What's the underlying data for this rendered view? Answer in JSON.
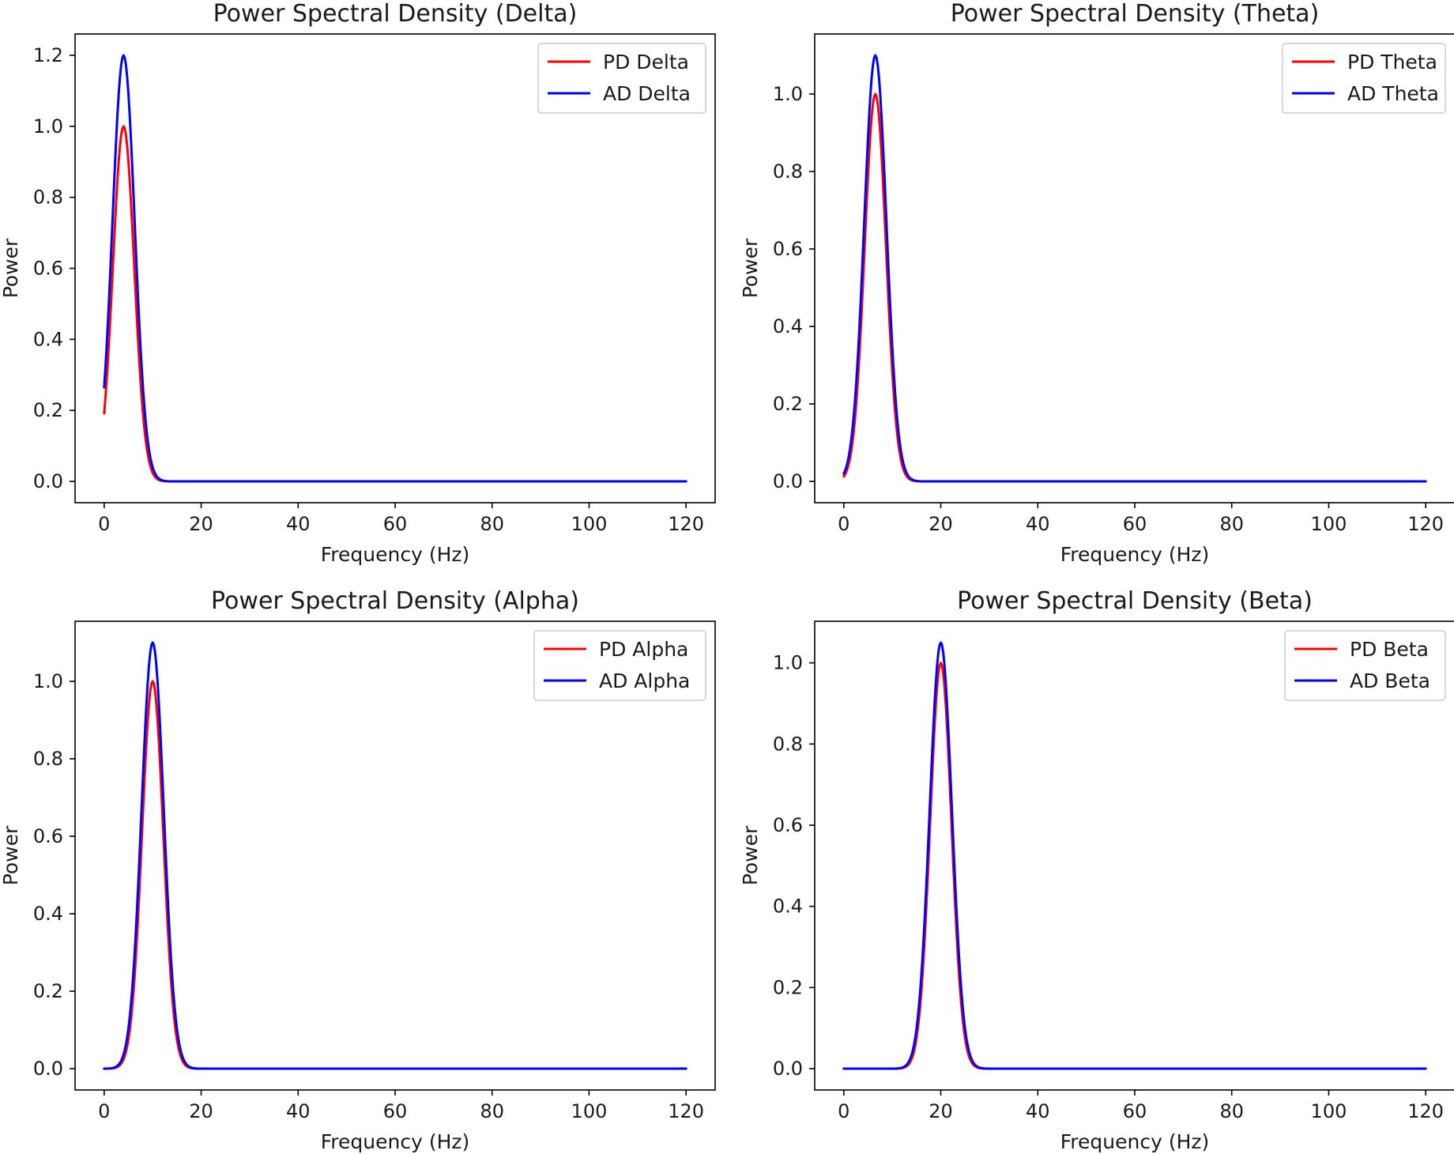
{
  "colors": {
    "PD": "#ff0000",
    "AD": "#0000ff"
  },
  "chart_data": [
    {
      "type": "line",
      "title": "Power Spectral Density (Delta)",
      "xlabel": "Frequency (Hz)",
      "ylabel": "Power",
      "xlim": [
        -6,
        126
      ],
      "ylim": [
        -0.06,
        1.26
      ],
      "xticks": [
        0,
        20,
        40,
        60,
        80,
        100,
        120
      ],
      "yticks": [
        0.0,
        0.2,
        0.4,
        0.6,
        0.8,
        1.0,
        1.2
      ],
      "ytick_labels": [
        "0.0",
        "0.2",
        "0.4",
        "0.6",
        "0.8",
        "1.0",
        "1.2"
      ],
      "legend": "top-right",
      "series": [
        {
          "name": "PD Delta",
          "color": "#ff0000",
          "peak_freq": 4,
          "peak_power": 1.0,
          "width_hz": 2.2,
          "x": [
            0,
            120
          ]
        },
        {
          "name": "AD Delta",
          "color": "#0000ff",
          "peak_freq": 4,
          "peak_power": 1.2,
          "width_hz": 2.3,
          "x": [
            0,
            120
          ]
        }
      ]
    },
    {
      "type": "line",
      "title": "Power Spectral Density (Theta)",
      "xlabel": "Frequency (Hz)",
      "ylabel": "Power",
      "xlim": [
        -6,
        126
      ],
      "ylim": [
        -0.055,
        1.155
      ],
      "xticks": [
        0,
        20,
        40,
        60,
        80,
        100,
        120
      ],
      "yticks": [
        0.0,
        0.2,
        0.4,
        0.6,
        0.8,
        1.0
      ],
      "ytick_labels": [
        "0.0",
        "0.2",
        "0.4",
        "0.6",
        "0.8",
        "1.0"
      ],
      "legend": "top-right",
      "series": [
        {
          "name": "PD Theta",
          "color": "#ff0000",
          "peak_freq": 6.5,
          "peak_power": 1.0,
          "width_hz": 2.2,
          "x": [
            0,
            120
          ]
        },
        {
          "name": "AD Theta",
          "color": "#0000ff",
          "peak_freq": 6.5,
          "peak_power": 1.1,
          "width_hz": 2.3,
          "x": [
            0,
            120
          ]
        }
      ]
    },
    {
      "type": "line",
      "title": "Power Spectral Density (Alpha)",
      "xlabel": "Frequency (Hz)",
      "ylabel": "Power",
      "xlim": [
        -6,
        126
      ],
      "ylim": [
        -0.055,
        1.155
      ],
      "xticks": [
        0,
        20,
        40,
        60,
        80,
        100,
        120
      ],
      "yticks": [
        0.0,
        0.2,
        0.4,
        0.6,
        0.8,
        1.0
      ],
      "ytick_labels": [
        "0.0",
        "0.2",
        "0.4",
        "0.6",
        "0.8",
        "1.0"
      ],
      "legend": "top-right",
      "series": [
        {
          "name": "PD Alpha",
          "color": "#ff0000",
          "peak_freq": 10,
          "peak_power": 1.0,
          "width_hz": 2.2,
          "x": [
            0,
            120
          ]
        },
        {
          "name": "AD Alpha",
          "color": "#0000ff",
          "peak_freq": 10,
          "peak_power": 1.1,
          "width_hz": 2.3,
          "x": [
            0,
            120
          ]
        }
      ]
    },
    {
      "type": "line",
      "title": "Power Spectral Density (Beta)",
      "xlabel": "Frequency (Hz)",
      "ylabel": "Power",
      "xlim": [
        -6,
        126
      ],
      "ylim": [
        -0.0525,
        1.1025
      ],
      "xticks": [
        0,
        20,
        40,
        60,
        80,
        100,
        120
      ],
      "yticks": [
        0.0,
        0.2,
        0.4,
        0.6,
        0.8,
        1.0
      ],
      "ytick_labels": [
        "0.0",
        "0.2",
        "0.4",
        "0.6",
        "0.8",
        "1.0"
      ],
      "legend": "top-right",
      "series": [
        {
          "name": "PD Beta",
          "color": "#ff0000",
          "peak_freq": 20,
          "peak_power": 1.0,
          "width_hz": 2.2,
          "x": [
            0,
            120
          ]
        },
        {
          "name": "AD Beta",
          "color": "#0000ff",
          "peak_freq": 20,
          "peak_power": 1.05,
          "width_hz": 2.3,
          "x": [
            0,
            120
          ]
        }
      ]
    }
  ]
}
